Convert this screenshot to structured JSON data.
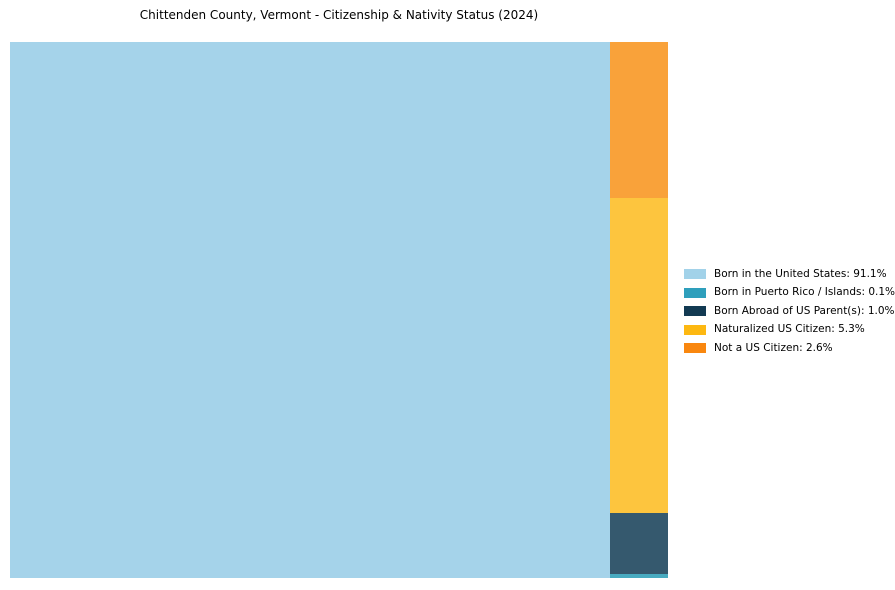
{
  "chart_data": {
    "type": "treemap",
    "title": "Chittenden County, Vermont - Citizenship & Nativity Status (2024)",
    "categories": [
      "Born in the United States",
      "Born in Puerto Rico / Islands",
      "Born Abroad of US Parent(s)",
      "Naturalized US Citizen",
      "Not a US Citizen"
    ],
    "values": [
      91.1,
      0.1,
      1.0,
      5.3,
      2.6
    ],
    "unit": "%",
    "legend_position": "center-right",
    "legend_colors": [
      "#a2d2e9",
      "#2e9fbc",
      "#123a52",
      "#fdb811",
      "#f9870f"
    ],
    "fill_colors": [
      "#a5d3ea",
      "#48abc0",
      "#35596e",
      "#fdc53e",
      "#f9a23a"
    ],
    "layout_hint": {
      "main_tile_left": "Born in the United States",
      "right_column_top_to_bottom": [
        "Not a US Citizen",
        "Naturalized US Citizen",
        "Born Abroad of US Parent(s)",
        "Born in Puerto Rico / Islands"
      ]
    }
  },
  "treemap": {
    "tiles": [
      {
        "name": "born-in-us",
        "category": "Born in the United States",
        "value_pct": 91.1,
        "color": "#a5d3ea"
      },
      {
        "name": "born-pr-islands",
        "category": "Born in Puerto Rico / Islands",
        "value_pct": 0.1,
        "color": "#48abc0"
      },
      {
        "name": "born-abroad-us-parents",
        "category": "Born Abroad of US Parent(s)",
        "value_pct": 1.0,
        "color": "#35596e"
      },
      {
        "name": "naturalized-us-citizen",
        "category": "Naturalized US Citizen",
        "value_pct": 5.3,
        "color": "#fdc53e"
      },
      {
        "name": "not-us-citizen",
        "category": "Not a US Citizen",
        "value_pct": 2.6,
        "color": "#f9a23a"
      }
    ]
  },
  "legend": {
    "items": [
      {
        "label": "Born in the United States: 91.1%",
        "color": "#a2d2e9"
      },
      {
        "label": "Born in Puerto Rico / Islands: 0.1%",
        "color": "#2e9fbc"
      },
      {
        "label": "Born Abroad of US Parent(s): 1.0%",
        "color": "#123a52"
      },
      {
        "label": "Naturalized US Citizen: 5.3%",
        "color": "#fdb811"
      },
      {
        "label": "Not a US Citizen: 2.6%",
        "color": "#f9870f"
      }
    ]
  }
}
